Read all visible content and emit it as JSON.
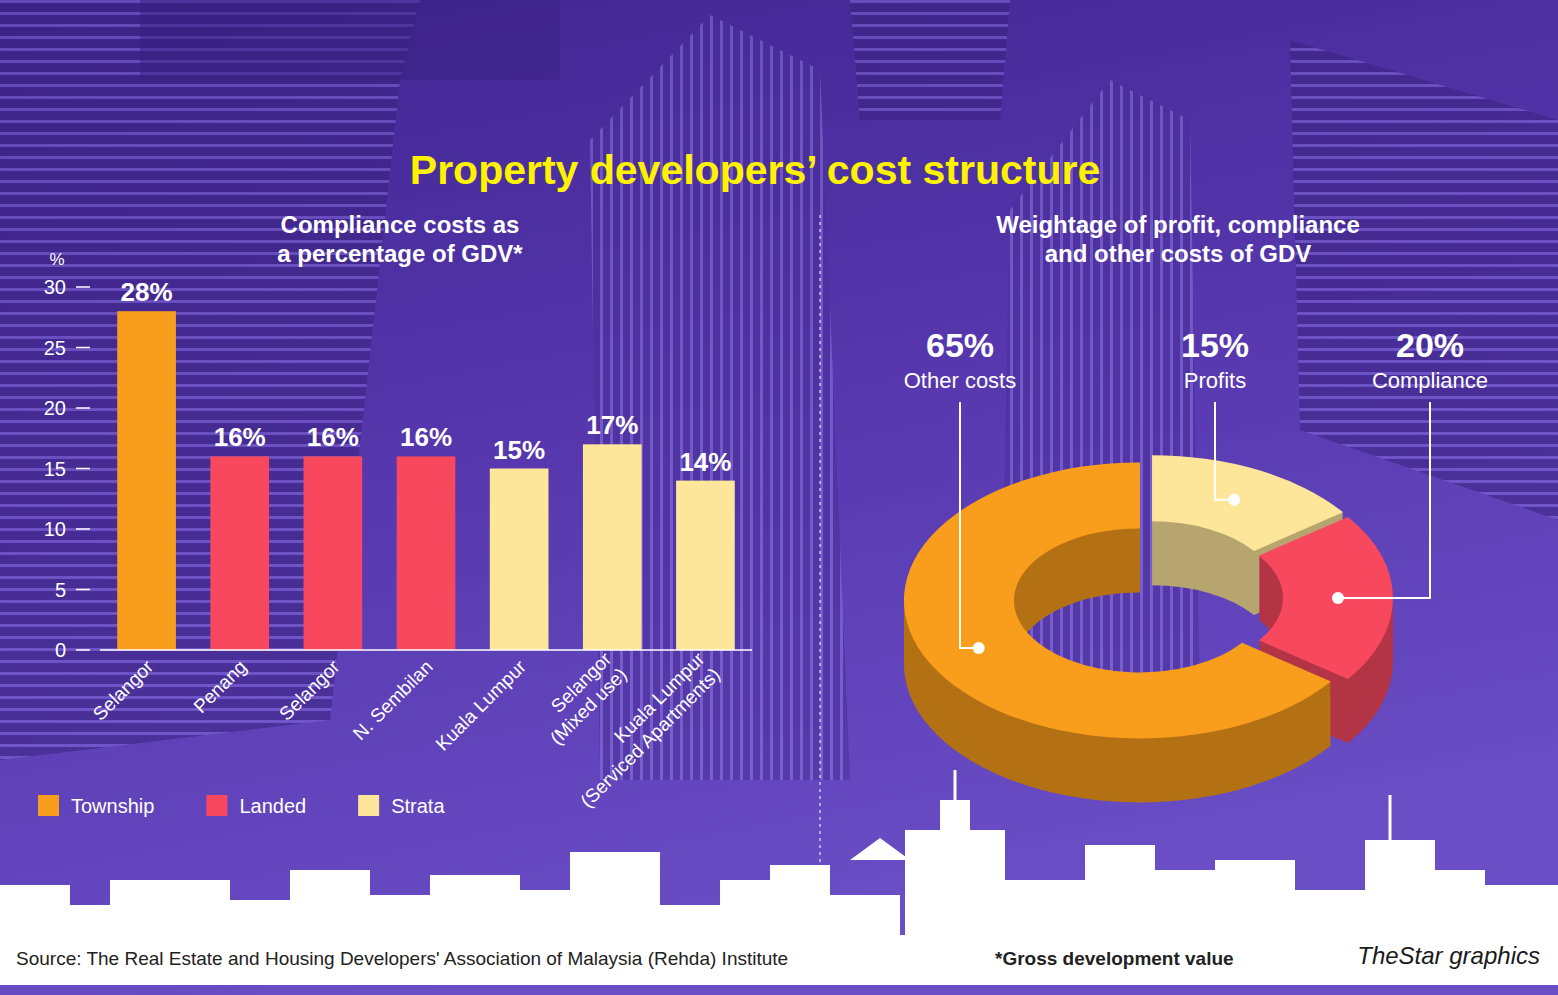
{
  "title": "Property developers’ cost structure",
  "chart_data": [
    {
      "type": "bar",
      "title": "Compliance costs as a percentage of GDV*",
      "y_label": "%",
      "categories": [
        "Selangor",
        "Penang",
        "Selangor",
        "N. Sembilan",
        "Kuala Lumpur",
        "Selangor (Mixed use)",
        "Kuala Lumpur (Serviced Apartments)"
      ],
      "series": [
        {
          "name": "Township",
          "color": "#f99d1c",
          "values": [
            28,
            null,
            null,
            null,
            null,
            null,
            null
          ],
          "value_labels": [
            "28%",
            null,
            null,
            null,
            null,
            null,
            null
          ]
        },
        {
          "name": "Landed",
          "color": "#f8485e",
          "values": [
            null,
            16,
            16,
            16,
            null,
            null,
            null
          ],
          "value_labels": [
            null,
            "16%",
            "16%",
            "16%",
            null,
            null,
            null
          ]
        },
        {
          "name": "Strata",
          "color": "#fde59a",
          "values": [
            null,
            null,
            null,
            null,
            15,
            17,
            14
          ],
          "value_labels": [
            null,
            null,
            null,
            null,
            "15%",
            "17%",
            "14%"
          ]
        }
      ],
      "stacked": true,
      "ylim": [
        0,
        30
      ],
      "yticks": [
        0,
        5,
        10,
        15,
        20,
        25,
        30
      ],
      "grid": false,
      "data_labels": true,
      "legend": "bottom-left"
    },
    {
      "type": "pie",
      "title": "Weightage of profit, compliance and other costs of GDV",
      "categories": [
        "Other costs",
        "Profits",
        "Compliance"
      ],
      "values": [
        65,
        15,
        20
      ],
      "value_labels": [
        "65%",
        "15%",
        "20%"
      ],
      "colors": [
        "#f99d1c",
        "#fde59a",
        "#f8485e"
      ],
      "data_labels": true
    }
  ],
  "source": "Source: The Real Estate and Housing Developers' Association of Malaysia (Rehda) Institute",
  "footnote": "*Gross development value",
  "credit": "TheStar graphics"
}
